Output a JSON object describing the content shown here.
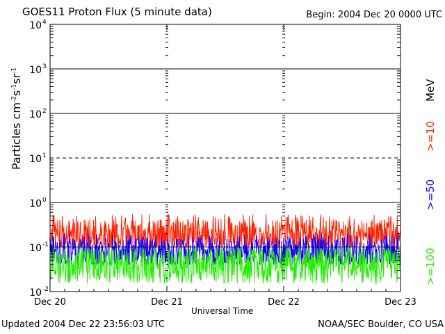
{
  "header": {
    "title": "GOES11 Proton Flux (5 minute data)",
    "begin": "Begin: 2004 Dec 20 0000 UTC"
  },
  "footer": {
    "updated": "Updated 2004 Dec 22 23:56:03 UTC",
    "credit": "NOAA/SEC Boulder, CO USA"
  },
  "colors": {
    "ge10": "#ff2200",
    "ge50": "#1a00ff",
    "ge100": "#22ee00",
    "grid": "#000000"
  },
  "chart_data": {
    "type": "line",
    "title": "GOES11 Proton Flux (5 minute data)",
    "xlabel": "Universal Time",
    "ylabel": "Particles cm-2s-1sr-1",
    "yscale": "log",
    "ylim": [
      0.01,
      10000
    ],
    "xlim": [
      "2004-12-20",
      "2004-12-23"
    ],
    "x_ticks": [
      "Dec 20",
      "Dec 21",
      "Dec 22",
      "Dec 23"
    ],
    "y_ticks": [
      {
        "value": 0.01,
        "base": "10",
        "exp": "-2"
      },
      {
        "value": 0.1,
        "base": "10",
        "exp": "-1"
      },
      {
        "value": 1,
        "base": "10",
        "exp": "0"
      },
      {
        "value": 10,
        "base": "10",
        "exp": "1"
      },
      {
        "value": 100,
        "base": "10",
        "exp": "2"
      },
      {
        "value": 1000,
        "base": "10",
        "exp": "3"
      },
      {
        "value": 10000,
        "base": "10",
        "exp": "4"
      }
    ],
    "grid": {
      "solid_levels": [
        1,
        100,
        1000
      ],
      "dashed_levels": [
        10
      ],
      "thin_levels": [
        0.1
      ]
    },
    "legend_placement": "right",
    "legend_unit": "MeV",
    "series": [
      {
        "name": ">=10",
        "color": "#ff2200",
        "typical": 0.2,
        "range": [
          0.1,
          0.55
        ]
      },
      {
        "name": ">=50",
        "color": "#1a00ff",
        "typical": 0.08,
        "range": [
          0.04,
          0.2
        ]
      },
      {
        "name": ">=100",
        "color": "#22ee00",
        "typical": 0.04,
        "range": [
          0.015,
          0.1
        ]
      }
    ]
  }
}
